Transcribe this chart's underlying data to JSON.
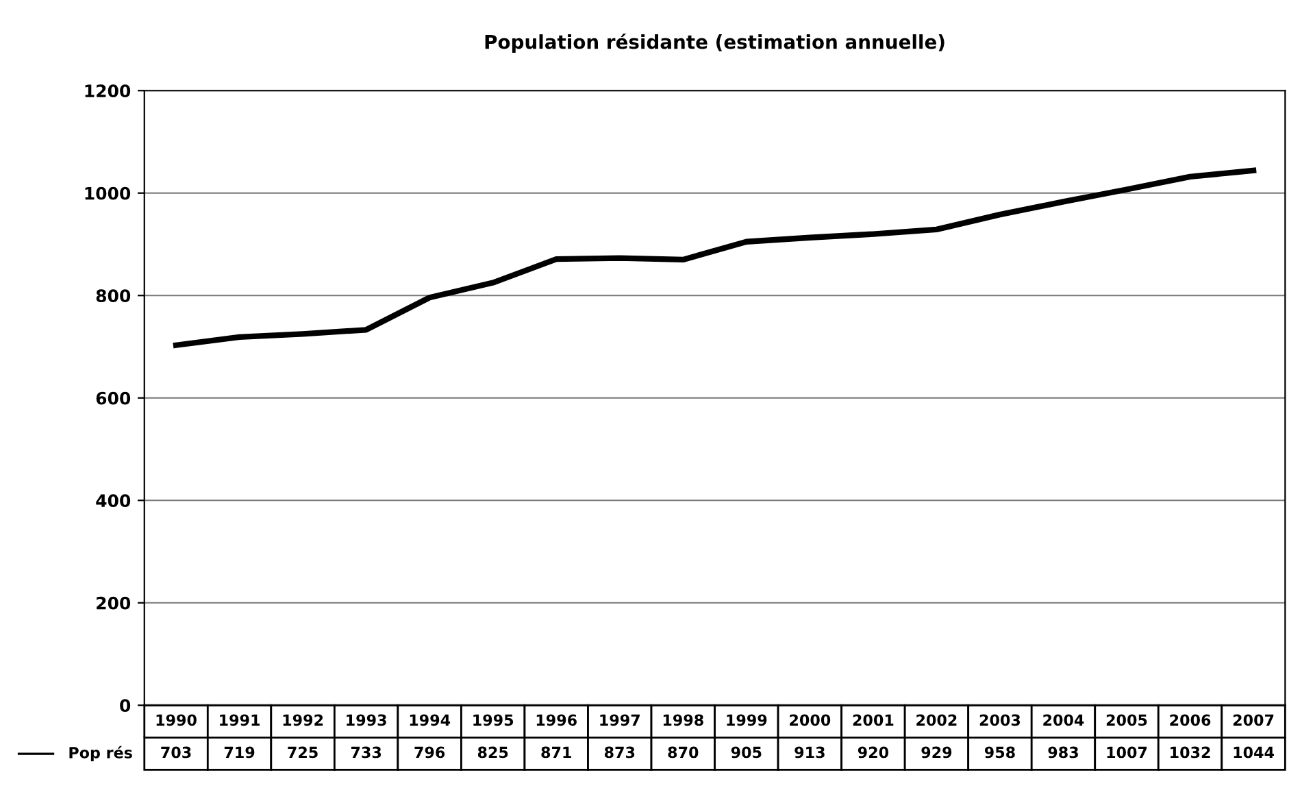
{
  "chart_data": {
    "type": "line",
    "title": "Population résidante (estimation annuelle)",
    "categories": [
      "1990",
      "1991",
      "1992",
      "1993",
      "1994",
      "1995",
      "1996",
      "1997",
      "1998",
      "1999",
      "2000",
      "2001",
      "2002",
      "2003",
      "2004",
      "2005",
      "2006",
      "2007"
    ],
    "series": [
      {
        "name": "Pop rés",
        "color": "#000000",
        "values": [
          703,
          719,
          725,
          733,
          796,
          825,
          871,
          873,
          870,
          905,
          913,
          920,
          929,
          958,
          983,
          1007,
          1032,
          1044
        ]
      }
    ],
    "ylim": [
      0,
      1200
    ],
    "yticks": [
      0,
      200,
      400,
      600,
      800,
      1000,
      1200
    ],
    "grid": "y",
    "data_labels": true,
    "marker": "none",
    "line_style": "solid"
  }
}
